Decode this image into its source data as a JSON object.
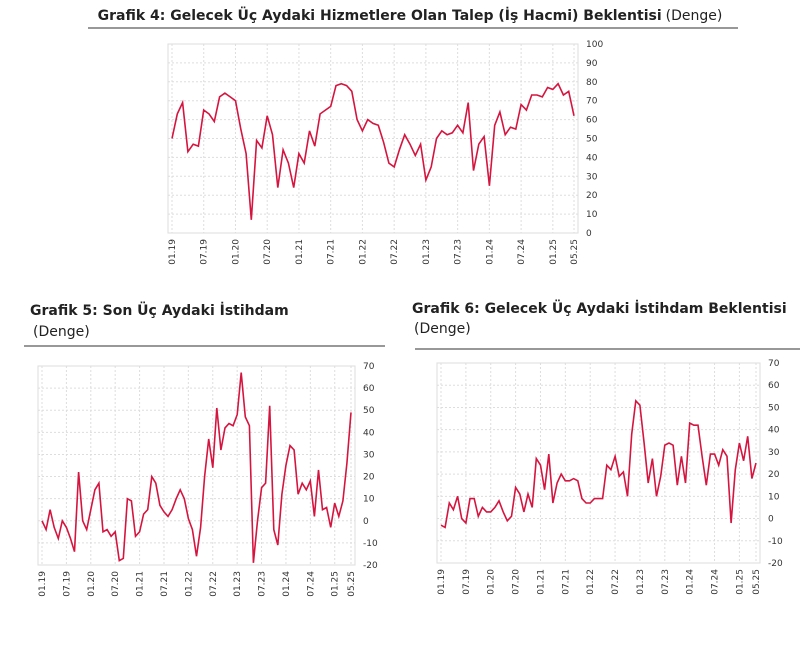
{
  "chart_data": [
    {
      "type": "line",
      "title": "Grafik 4: Gelecek Üç Aydaki Hizmetlere Olan Talep (İş Hacmi) Beklentisi",
      "subtitle": "(Denge)",
      "categories": [
        "01.19",
        null,
        null,
        null,
        null,
        null,
        "07.19",
        null,
        null,
        null,
        null,
        null,
        "01.20",
        null,
        null,
        null,
        null,
        null,
        "07.20",
        null,
        null,
        null,
        null,
        null,
        "01.21",
        null,
        null,
        null,
        null,
        null,
        "07.21",
        null,
        null,
        null,
        null,
        null,
        "01.22",
        null,
        null,
        null,
        null,
        null,
        "07.22",
        null,
        null,
        null,
        null,
        null,
        "01.23",
        null,
        null,
        null,
        null,
        null,
        "07.23",
        null,
        null,
        null,
        null,
        null,
        "01.24",
        null,
        null,
        null,
        null,
        null,
        "07.24",
        null,
        null,
        null,
        null,
        null,
        "01.25",
        null,
        null,
        null,
        "05.25"
      ],
      "series": [
        {
          "color": "#d5153f",
          "values": [
            50,
            63,
            69,
            43,
            47,
            46,
            65,
            63,
            59,
            72,
            74,
            72,
            70,
            55,
            42,
            7,
            49,
            45,
            62,
            52,
            24,
            44,
            37,
            24,
            42,
            37,
            54,
            46,
            63,
            65,
            67,
            78,
            79,
            78,
            75,
            60,
            54,
            60,
            58,
            57,
            48,
            37,
            35,
            44,
            52,
            47,
            41,
            47,
            28,
            35,
            50,
            54,
            52,
            53,
            57,
            53,
            69,
            33,
            47,
            51,
            25,
            57,
            64,
            52,
            56,
            55,
            68,
            65,
            73,
            73,
            72,
            77,
            76,
            79,
            73,
            75,
            62
          ]
        }
      ],
      "ylim": [
        0,
        100
      ],
      "yticks": [
        0,
        10,
        20,
        30,
        40,
        50,
        60,
        70,
        80,
        90,
        100
      ],
      "grid": true
    },
    {
      "type": "line",
      "title": "Grafik 5: Son Üç Aydaki İstihdam",
      "subtitle": "(Denge)",
      "categories": [
        "01.19",
        null,
        null,
        null,
        null,
        null,
        "07.19",
        null,
        null,
        null,
        null,
        null,
        "01.20",
        null,
        null,
        null,
        null,
        null,
        "07.20",
        null,
        null,
        null,
        null,
        null,
        "01.21",
        null,
        null,
        null,
        null,
        null,
        "07.21",
        null,
        null,
        null,
        null,
        null,
        "01.22",
        null,
        null,
        null,
        null,
        null,
        "07.22",
        null,
        null,
        null,
        null,
        null,
        "01.23",
        null,
        null,
        null,
        null,
        null,
        "07.23",
        null,
        null,
        null,
        null,
        null,
        "01.24",
        null,
        null,
        null,
        null,
        null,
        "07.24",
        null,
        null,
        null,
        null,
        null,
        "01.25",
        null,
        null,
        null,
        "05.25"
      ],
      "series": [
        {
          "color": "#d5153f",
          "values": [
            0,
            -4,
            5,
            -3,
            -8,
            0,
            -3,
            -8,
            -14,
            22,
            0,
            -4,
            5,
            14,
            17,
            -5,
            -4,
            -7,
            -5,
            -18,
            -17,
            10,
            9,
            -7,
            -5,
            3,
            5,
            20,
            17,
            7,
            4,
            2,
            5,
            10,
            14,
            10,
            1,
            -4,
            -16,
            -3,
            20,
            37,
            24,
            51,
            32,
            42,
            44,
            43,
            48,
            67,
            47,
            43,
            -19,
            0,
            15,
            17,
            52,
            -4,
            -11,
            12,
            25,
            34,
            32,
            12,
            17,
            14,
            18,
            2,
            23,
            5,
            6,
            -3,
            8,
            2,
            9,
            26,
            49
          ]
        }
      ],
      "ylim": [
        -20,
        70
      ],
      "yticks": [
        -20,
        -10,
        0,
        10,
        20,
        30,
        40,
        50,
        60,
        70
      ],
      "grid": true
    },
    {
      "type": "line",
      "title": "Grafik 6: Gelecek Üç Aydaki İstihdam Beklentisi",
      "subtitle": "(Denge)",
      "categories": [
        "01.19",
        null,
        null,
        null,
        null,
        null,
        "07.19",
        null,
        null,
        null,
        null,
        null,
        "01.20",
        null,
        null,
        null,
        null,
        null,
        "07.20",
        null,
        null,
        null,
        null,
        null,
        "01.21",
        null,
        null,
        null,
        null,
        null,
        "07.21",
        null,
        null,
        null,
        null,
        null,
        "01.22",
        null,
        null,
        null,
        null,
        null,
        "07.22",
        null,
        null,
        null,
        null,
        null,
        "01.23",
        null,
        null,
        null,
        null,
        null,
        "07.23",
        null,
        null,
        null,
        null,
        null,
        "01.24",
        null,
        null,
        null,
        null,
        null,
        "07.24",
        null,
        null,
        null,
        null,
        null,
        "01.25",
        null,
        null,
        null,
        "05.25"
      ],
      "series": [
        {
          "color": "#d5153f",
          "values": [
            -3,
            -4,
            7,
            4,
            10,
            0,
            -2,
            9,
            9,
            1,
            5,
            3,
            3,
            5,
            8,
            3,
            -1,
            1,
            14,
            11,
            3,
            11,
            5,
            27,
            24,
            13,
            29,
            7,
            16,
            20,
            17,
            17,
            18,
            17,
            9,
            7,
            7,
            9,
            9,
            9,
            24,
            22,
            28,
            19,
            21,
            10,
            38,
            53,
            51,
            34,
            16,
            27,
            10,
            19,
            33,
            34,
            33,
            15,
            28,
            16,
            43,
            42,
            42,
            28,
            15,
            29,
            29,
            24,
            31,
            28,
            -2,
            22,
            34,
            26,
            37,
            18,
            25
          ]
        }
      ],
      "ylim": [
        -20,
        70
      ],
      "yticks": [
        -20,
        -10,
        0,
        10,
        20,
        30,
        40,
        50,
        60,
        70
      ],
      "grid": true
    }
  ]
}
